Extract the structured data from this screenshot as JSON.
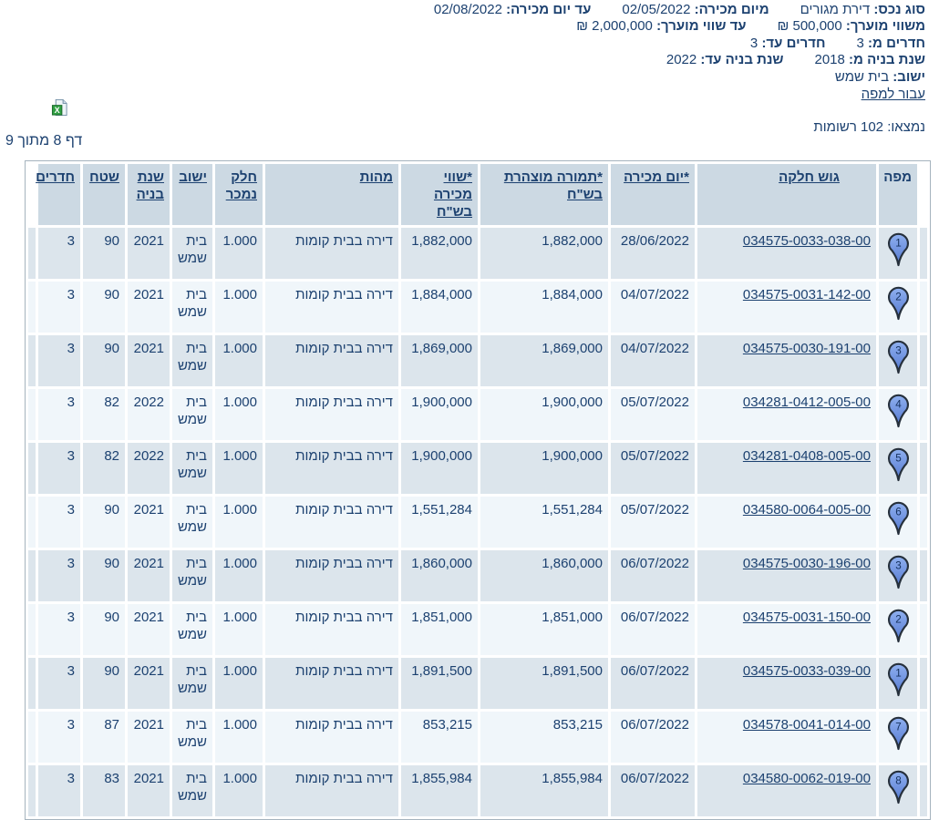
{
  "filters": {
    "lines": [
      {
        "pairs": [
          {
            "label": "סוג נכס:",
            "value": "דירת מגורים"
          },
          {
            "label": "מיום מכירה:",
            "value": "02/05/2022"
          },
          {
            "label": "עד יום מכירה:",
            "value": "02/08/2022"
          }
        ]
      },
      {
        "pairs": [
          {
            "label": "משווי מוערך:",
            "value": "500,000 ₪"
          },
          {
            "label": "עד שווי מוערך:",
            "value": "2,000,000 ₪"
          }
        ]
      },
      {
        "pairs": [
          {
            "label": "חדרים מ:",
            "value": "3"
          },
          {
            "label": "חדרים עד:",
            "value": "3"
          }
        ]
      },
      {
        "pairs": [
          {
            "label": "שנת בניה מ:",
            "value": "2018"
          },
          {
            "label": "שנת בניה עד:",
            "value": "2022"
          }
        ]
      },
      {
        "pairs": [
          {
            "label": "ישוב:",
            "value": "בית שמש"
          }
        ]
      }
    ],
    "map_link": "עבור למפה"
  },
  "results": {
    "found_text": "נמצאו: 102 רשומות",
    "page_text": "דף 8 מתוך 9"
  },
  "icons": {
    "excel_export": "excel-export-icon",
    "map_pin": "map-pin-icon"
  },
  "colors": {
    "text_navy": "#1c4170",
    "header_bg": "#ccd9e3",
    "row_odd_bg": "#dce5ec",
    "row_even_bg": "#f0f6fa",
    "table_border": "#a5b3be",
    "pin_fill_top": "#8fb0f0",
    "pin_fill_bottom": "#5478cf",
    "pin_outline": "#26303c",
    "excel_green": "#2f9e41"
  },
  "table": {
    "columns": [
      {
        "key": "map",
        "label": "מפה",
        "sortable": false
      },
      {
        "key": "parcel",
        "label": "גוש חלקה",
        "sortable": true
      },
      {
        "key": "sale_date",
        "label": "*יום מכירה",
        "sortable": true
      },
      {
        "key": "declared",
        "label": "*תמורה מוצהרת בש\"ח",
        "sortable": true
      },
      {
        "key": "value",
        "label": "*שווי מכירה בש\"ח",
        "sortable": true
      },
      {
        "key": "nature",
        "label": "מהות",
        "sortable": true
      },
      {
        "key": "part",
        "label": "חלק נמכר",
        "sortable": true
      },
      {
        "key": "city",
        "label": "ישוב",
        "sortable": true
      },
      {
        "key": "year",
        "label": "שנת בניה",
        "sortable": true
      },
      {
        "key": "area",
        "label": "שטח",
        "sortable": true
      },
      {
        "key": "rooms",
        "label": "חדרים",
        "sortable": true
      }
    ],
    "rows": [
      {
        "pin": "1",
        "parcel": "034575-0033-038-00",
        "sale_date": "28/06/2022",
        "declared": "1,882,000",
        "value": "1,882,000",
        "nature": "דירה בבית קומות",
        "part": "1.000",
        "city": "בית שמש",
        "year": "2021",
        "area": "90",
        "rooms": "3"
      },
      {
        "pin": "2",
        "parcel": "034575-0031-142-00",
        "sale_date": "04/07/2022",
        "declared": "1,884,000",
        "value": "1,884,000",
        "nature": "דירה בבית קומות",
        "part": "1.000",
        "city": "בית שמש",
        "year": "2021",
        "area": "90",
        "rooms": "3"
      },
      {
        "pin": "3",
        "parcel": "034575-0030-191-00",
        "sale_date": "04/07/2022",
        "declared": "1,869,000",
        "value": "1,869,000",
        "nature": "דירה בבית קומות",
        "part": "1.000",
        "city": "בית שמש",
        "year": "2021",
        "area": "90",
        "rooms": "3"
      },
      {
        "pin": "4",
        "parcel": "034281-0412-005-00",
        "sale_date": "05/07/2022",
        "declared": "1,900,000",
        "value": "1,900,000",
        "nature": "דירה בבית קומות",
        "part": "1.000",
        "city": "בית שמש",
        "year": "2022",
        "area": "82",
        "rooms": "3"
      },
      {
        "pin": "5",
        "parcel": "034281-0408-005-00",
        "sale_date": "05/07/2022",
        "declared": "1,900,000",
        "value": "1,900,000",
        "nature": "דירה בבית קומות",
        "part": "1.000",
        "city": "בית שמש",
        "year": "2022",
        "area": "82",
        "rooms": "3"
      },
      {
        "pin": "6",
        "parcel": "034580-0064-005-00",
        "sale_date": "05/07/2022",
        "declared": "1,551,284",
        "value": "1,551,284",
        "nature": "דירה בבית קומות",
        "part": "1.000",
        "city": "בית שמש",
        "year": "2021",
        "area": "90",
        "rooms": "3"
      },
      {
        "pin": "3",
        "parcel": "034575-0030-196-00",
        "sale_date": "06/07/2022",
        "declared": "1,860,000",
        "value": "1,860,000",
        "nature": "דירה בבית קומות",
        "part": "1.000",
        "city": "בית שמש",
        "year": "2021",
        "area": "90",
        "rooms": "3"
      },
      {
        "pin": "2",
        "parcel": "034575-0031-150-00",
        "sale_date": "06/07/2022",
        "declared": "1,851,000",
        "value": "1,851,000",
        "nature": "דירה בבית קומות",
        "part": "1.000",
        "city": "בית שמש",
        "year": "2021",
        "area": "90",
        "rooms": "3"
      },
      {
        "pin": "1",
        "parcel": "034575-0033-039-00",
        "sale_date": "06/07/2022",
        "declared": "1,891,500",
        "value": "1,891,500",
        "nature": "דירה בבית קומות",
        "part": "1.000",
        "city": "בית שמש",
        "year": "2021",
        "area": "90",
        "rooms": "3"
      },
      {
        "pin": "7",
        "parcel": "034578-0041-014-00",
        "sale_date": "06/07/2022",
        "declared": "853,215",
        "value": "853,215",
        "nature": "דירה בבית קומות",
        "part": "1.000",
        "city": "בית שמש",
        "year": "2021",
        "area": "87",
        "rooms": "3"
      },
      {
        "pin": "8",
        "parcel": "034580-0062-019-00",
        "sale_date": "06/07/2022",
        "declared": "1,855,984",
        "value": "1,855,984",
        "nature": "דירה בבית קומות",
        "part": "1.000",
        "city": "בית שמש",
        "year": "2021",
        "area": "83",
        "rooms": "3"
      }
    ]
  }
}
